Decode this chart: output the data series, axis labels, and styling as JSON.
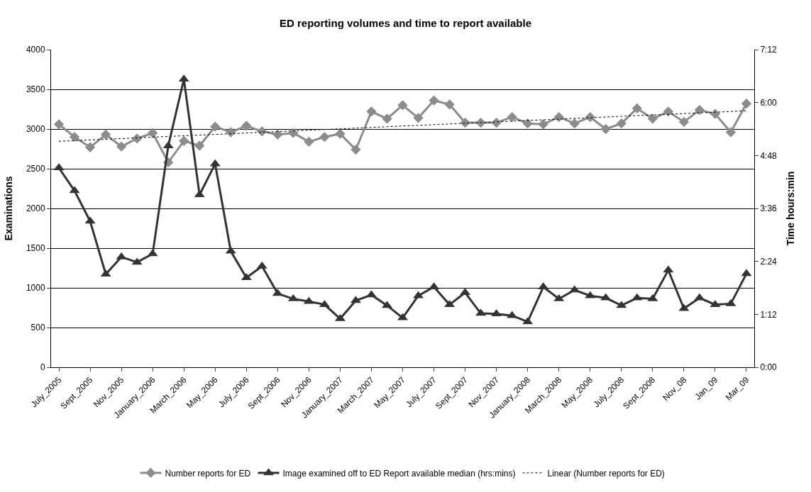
{
  "chart_data": {
    "type": "line",
    "title": "ED reporting volumes and time to report available",
    "categories": [
      "July_2005",
      null,
      "Sept_2005",
      null,
      "Nov_2005",
      null,
      "January_2006",
      null,
      "March_2006",
      null,
      "May_2006",
      null,
      "July_2006",
      null,
      "Sept_2006",
      null,
      "Nov_2006",
      null,
      "January_2007",
      null,
      "March_2007",
      null,
      "May_2007",
      null,
      "July_2007",
      null,
      "Sept_2007",
      null,
      "Nov_2007",
      null,
      "January_2008",
      null,
      "March_2008",
      null,
      "May_2008",
      null,
      "July_2008",
      null,
      "Sept_2008",
      null,
      "Nov_08",
      null,
      "Jan_09",
      null,
      "Mar_09"
    ],
    "series": [
      {
        "name": "Number reports for ED",
        "color": "#8c8c8c",
        "marker": "diamond",
        "line_style": "solid",
        "values": [
          3060,
          2900,
          2770,
          2930,
          2780,
          2880,
          2950,
          2580,
          2850,
          2790,
          3030,
          2960,
          3040,
          2970,
          2930,
          2950,
          2840,
          2900,
          2940,
          2740,
          3220,
          3130,
          3300,
          3140,
          3360,
          3310,
          3080,
          3080,
          3080,
          3150,
          3070,
          3060,
          3150,
          3070,
          3150,
          3000,
          3070,
          3260,
          3130,
          3220,
          3090,
          3240,
          3190,
          2960,
          3320
        ]
      },
      {
        "name": "Image examined off to ED Report available median (hrs:mins)",
        "color": "#333333",
        "marker": "triangle",
        "line_style": "solid",
        "axis": "y2",
        "values": [
          4.52,
          4.0,
          3.31,
          2.11,
          2.5,
          2.38,
          2.57,
          5.02,
          6.53,
          3.91,
          4.61,
          2.63,
          2.03,
          2.29,
          1.67,
          1.55,
          1.49,
          1.42,
          1.1,
          1.51,
          1.64,
          1.4,
          1.12,
          1.62,
          1.82,
          1.42,
          1.69,
          1.22,
          1.21,
          1.17,
          1.03,
          1.82,
          1.55,
          1.75,
          1.62,
          1.57,
          1.4,
          1.57,
          1.55,
          2.2,
          1.33,
          1.57,
          1.42,
          1.44,
          2.12
        ]
      },
      {
        "name": "Linear (Number reports for ED)",
        "color": "#000000",
        "marker": "none",
        "line_style": "dotted",
        "values": [
          2845,
          2854,
          2862,
          2871,
          2880,
          2889,
          2898,
          2906,
          2915,
          2924,
          2932,
          2941,
          2950,
          2959,
          2968,
          2976,
          2985,
          2994,
          3002,
          3011,
          3020,
          3029,
          3038,
          3046,
          3055,
          3064,
          3072,
          3081,
          3090,
          3099,
          3108,
          3116,
          3125,
          3134,
          3142,
          3151,
          3160,
          3169,
          3178,
          3186,
          3195,
          3204,
          3212,
          3221,
          3230
        ]
      }
    ],
    "ylabel": "Examinations",
    "y2label": "Time hours:min",
    "ylim": [
      0,
      4000
    ],
    "yticks": [
      0,
      500,
      1000,
      1500,
      2000,
      2500,
      3000,
      3500,
      4000
    ],
    "y2lim": [
      0,
      7.2
    ],
    "y2ticks": [
      {
        "value": 0,
        "label": "0:00"
      },
      {
        "value": 1.2,
        "label": "1:12"
      },
      {
        "value": 2.4,
        "label": "2:24"
      },
      {
        "value": 3.6,
        "label": "3:36"
      },
      {
        "value": 4.8,
        "label": "4:48"
      },
      {
        "value": 6,
        "label": "6:00"
      },
      {
        "value": 7.2,
        "label": "7:12"
      }
    ],
    "grid": "y",
    "legend": "bottom"
  }
}
